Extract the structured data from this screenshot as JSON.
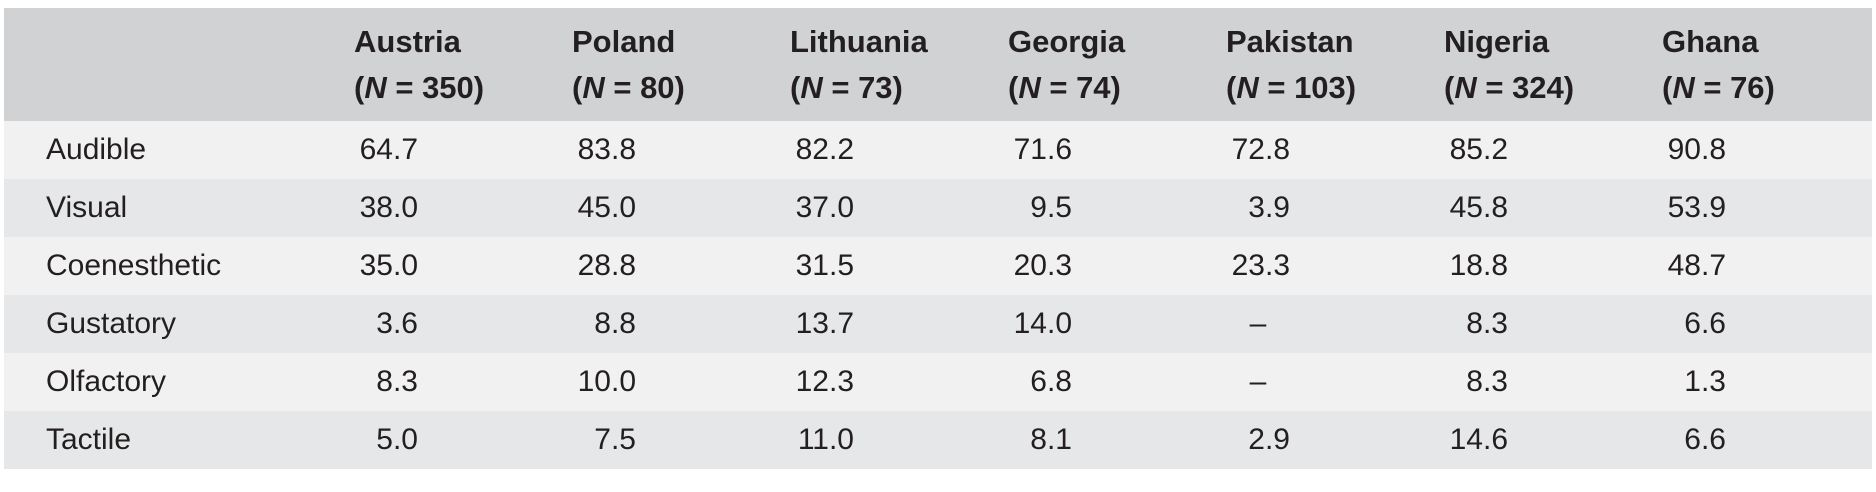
{
  "table": {
    "columns": [
      {
        "country": "Austria",
        "n": "350"
      },
      {
        "country": "Poland",
        "n": "80"
      },
      {
        "country": "Lithuania",
        "n": "73"
      },
      {
        "country": "Georgia",
        "n": "74"
      },
      {
        "country": "Pakistan",
        "n": "103"
      },
      {
        "country": "Nigeria",
        "n": "324"
      },
      {
        "country": "Ghana",
        "n": "76"
      }
    ],
    "n_symbol": "N",
    "rows": [
      {
        "label": "Audible",
        "values": [
          "64.7",
          "83.8",
          "82.2",
          "71.6",
          "72.8",
          "85.2",
          "90.8"
        ]
      },
      {
        "label": "Visual",
        "values": [
          "38.0",
          "45.0",
          "37.0",
          "9.5",
          "3.9",
          "45.8",
          "53.9"
        ]
      },
      {
        "label": "Coenesthetic",
        "values": [
          "35.0",
          "28.8",
          "31.5",
          "20.3",
          "23.3",
          "18.8",
          "48.7"
        ]
      },
      {
        "label": "Gustatory",
        "values": [
          "3.6",
          "8.8",
          "13.7",
          "14.0",
          "–",
          "8.3",
          "6.6"
        ]
      },
      {
        "label": "Olfactory",
        "values": [
          "8.3",
          "10.0",
          "12.3",
          "6.8",
          "–",
          "8.3",
          "1.3"
        ]
      },
      {
        "label": "Tactile",
        "values": [
          "5.0",
          "7.5",
          "11.0",
          "8.1",
          "2.9",
          "14.6",
          "6.6"
        ]
      }
    ]
  }
}
